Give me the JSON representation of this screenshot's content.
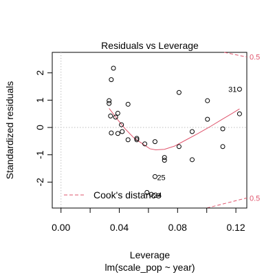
{
  "chart_data": {
    "type": "scatter",
    "title": "Residuals vs Leverage",
    "xlabel": "Leverage",
    "subtitle": "lm(scale_pop ~ year)",
    "ylabel": "Standardized residuals",
    "xlim": [
      -0.006,
      0.1275
    ],
    "ylim": [
      -2.95,
      2.75
    ],
    "x_ticks": [
      0.0,
      0.02,
      0.04,
      0.06,
      0.08,
      0.1,
      0.12
    ],
    "x_tick_labels": [
      "0.00",
      "",
      "0.04",
      "",
      "0.08",
      "",
      "0.12"
    ],
    "y_ticks": [
      -2,
      -1,
      0,
      1,
      2
    ],
    "y_tick_labels": [
      "-2",
      "-1",
      "0",
      "1",
      "2"
    ],
    "grid": false,
    "reference_lines": {
      "horizontal_y": 0,
      "vertical_x": 0
    },
    "points": [
      {
        "x": 0.033,
        "y": 0.98
      },
      {
        "x": 0.033,
        "y": 0.88
      },
      {
        "x": 0.034,
        "y": 0.42
      },
      {
        "x": 0.0345,
        "y": -0.2
      },
      {
        "x": 0.0345,
        "y": 1.75
      },
      {
        "x": 0.036,
        "y": 2.17
      },
      {
        "x": 0.0375,
        "y": 0.38
      },
      {
        "x": 0.039,
        "y": 0.52
      },
      {
        "x": 0.039,
        "y": -0.22
      },
      {
        "x": 0.0415,
        "y": 0.1
      },
      {
        "x": 0.042,
        "y": -0.15
      },
      {
        "x": 0.046,
        "y": 0.85
      },
      {
        "x": 0.046,
        "y": -0.45
      },
      {
        "x": 0.052,
        "y": -0.45
      },
      {
        "x": 0.052,
        "y": -0.4
      },
      {
        "x": 0.0575,
        "y": -0.6
      },
      {
        "x": 0.059,
        "y": -2.38
      },
      {
        "x": 0.062,
        "y": -2.45
      },
      {
        "x": 0.0645,
        "y": -0.52
      },
      {
        "x": 0.0645,
        "y": -1.8
      },
      {
        "x": 0.071,
        "y": -1.1
      },
      {
        "x": 0.071,
        "y": -1.2
      },
      {
        "x": 0.081,
        "y": 1.28
      },
      {
        "x": 0.081,
        "y": -0.7
      },
      {
        "x": 0.09,
        "y": -0.15
      },
      {
        "x": 0.09,
        "y": -1.18
      },
      {
        "x": 0.1005,
        "y": 0.98
      },
      {
        "x": 0.1005,
        "y": 0.3
      },
      {
        "x": 0.111,
        "y": -0.05
      },
      {
        "x": 0.111,
        "y": -0.7
      },
      {
        "x": 0.1225,
        "y": 1.4
      },
      {
        "x": 0.1225,
        "y": 0.5
      }
    ],
    "point_labels": [
      {
        "text": "31",
        "x": 0.1225,
        "y": 1.4
      },
      {
        "text": "25",
        "x": 0.0645,
        "y": -1.8
      },
      {
        "text": "24",
        "x": 0.062,
        "y": -2.45
      }
    ],
    "smoother": {
      "color": "#DF536B",
      "points": [
        {
          "x": 0.033,
          "y": 0.7
        },
        {
          "x": 0.039,
          "y": 0.28
        },
        {
          "x": 0.044,
          "y": -0.05
        },
        {
          "x": 0.05,
          "y": -0.38
        },
        {
          "x": 0.056,
          "y": -0.6
        },
        {
          "x": 0.061,
          "y": -0.78
        },
        {
          "x": 0.065,
          "y": -0.82
        },
        {
          "x": 0.071,
          "y": -0.8
        },
        {
          "x": 0.078,
          "y": -0.68
        },
        {
          "x": 0.086,
          "y": -0.45
        },
        {
          "x": 0.094,
          "y": -0.22
        },
        {
          "x": 0.102,
          "y": 0.02
        },
        {
          "x": 0.11,
          "y": 0.28
        },
        {
          "x": 0.117,
          "y": 0.5
        },
        {
          "x": 0.1225,
          "y": 0.68
        }
      ]
    },
    "cooks_contours": [
      {
        "label": "0.5",
        "points": [
          {
            "x": 0.112,
            "y": 2.78
          },
          {
            "x": 0.1275,
            "y": 2.58
          }
        ]
      },
      {
        "label": "0.5",
        "points": [
          {
            "x": 0.1,
            "y": -2.98
          },
          {
            "x": 0.1275,
            "y": -2.58
          }
        ]
      }
    ],
    "legend": {
      "position": "bottom-left",
      "entries": [
        {
          "label": "Cook's distance",
          "line": "dashed",
          "color": "#DF536B"
        }
      ]
    },
    "colors": {
      "points": "#000000",
      "cook": "#DF536B",
      "reference": "#bebebe",
      "axis": "#000000"
    }
  }
}
